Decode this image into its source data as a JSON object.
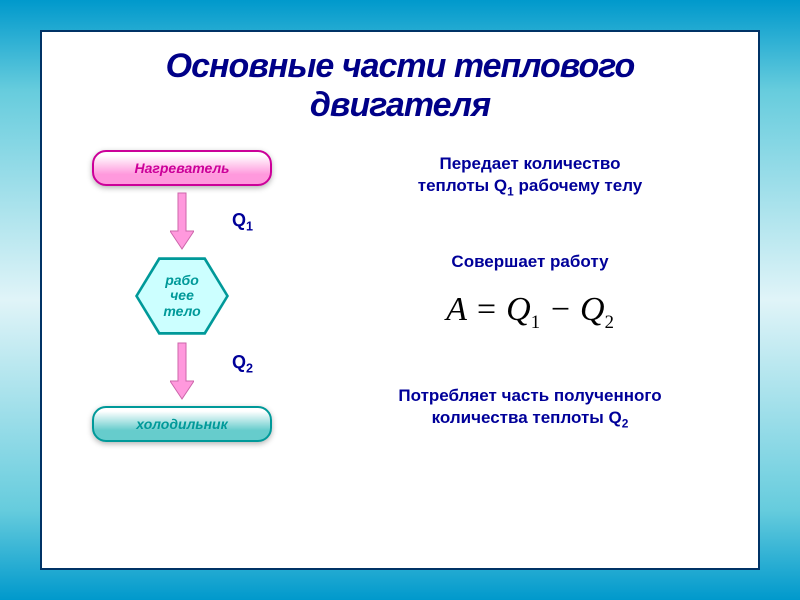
{
  "title": {
    "text": "Основные части теплового  двигателя",
    "color": "#000088",
    "fontsize": 34
  },
  "frame_border_color": "#003366",
  "diagram": {
    "heater": {
      "label": "Нагреватель",
      "border_color": "#cc0099",
      "text_color": "#cc0099",
      "fontsize": 14
    },
    "working_body": {
      "label": "рабо\nчее\nтело",
      "fill_color": "#ccffff",
      "border_color": "#009999",
      "text_color": "#009999",
      "fontsize": 14
    },
    "cooler": {
      "label": "холодильник",
      "border_color": "#009999",
      "text_color": "#009999",
      "fontsize": 14
    },
    "arrow1": {
      "label": "Q",
      "sub": "1",
      "label_color": "#000099",
      "fontsize": 18,
      "arrow_fill": "#ff99dd",
      "arrow_stroke": "#cc66aa"
    },
    "arrow2": {
      "label": "Q",
      "sub": "2",
      "label_color": "#000099",
      "fontsize": 18,
      "arrow_fill": "#ff99dd",
      "arrow_stroke": "#cc66aa"
    }
  },
  "descriptions": {
    "d1": {
      "text": "Передает количество",
      "text2": "теплоты Q",
      "sub": "1",
      "text3": " рабочему телу",
      "color": "#000099",
      "fontsize": 17
    },
    "d2": {
      "text": "Совершает работу",
      "color": "#000099",
      "fontsize": 17
    },
    "formula": {
      "lhs": "A",
      "eq": " = ",
      "q1": "Q",
      "s1": "1",
      "minus": " − ",
      "q2": "Q",
      "s2": "2",
      "color": "#000000",
      "fontsize": 34
    },
    "d3": {
      "text": "Потребляет часть полученного",
      "text2": "количества теплоты Q",
      "sub": "2",
      "color": "#000099",
      "fontsize": 17
    }
  }
}
